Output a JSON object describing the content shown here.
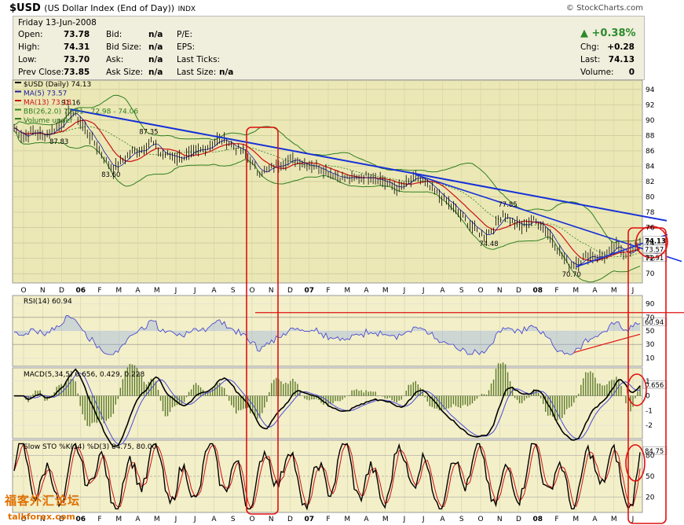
{
  "header": {
    "symbol": "$USD",
    "name": "(US Dollar Index (End of Day))",
    "exchange": "INDX",
    "watermark": "© StockCharts.com"
  },
  "info": {
    "date": "Friday  13-Jun-2008",
    "rows": [
      {
        "l1": "Open:",
        "v1": "73.78",
        "l2": "Bid:",
        "v2": "n/a",
        "l3": "P/E:",
        "v3": ""
      },
      {
        "l1": "High:",
        "v1": "74.31",
        "l2": "Bid Size:",
        "v2": "n/a",
        "l3": "EPS:",
        "v3": ""
      },
      {
        "l1": "Low:",
        "v1": "73.70",
        "l2": "Ask:",
        "v2": "n/a",
        "l3": "Last Ticks:",
        "v3": ""
      },
      {
        "l1": "Prev Close:",
        "v1": "73.85",
        "l2": "Ask Size:",
        "v2": "n/a",
        "l3": "Last Size:",
        "v3": "n/a"
      }
    ],
    "change_pct": "▲ +0.38%",
    "right": [
      {
        "l": "Chg:",
        "v": "+0.28"
      },
      {
        "l": "Last:",
        "v": "74.13"
      },
      {
        "l": "Volume:",
        "v": "0"
      }
    ]
  },
  "chart_data": [
    {
      "type": "line",
      "legend": [
        "$USD (Daily) 74.13",
        "MA(5) 73.57",
        "MA(13) 73.18",
        "BB(26,2.0) 71.91 - 72.98 - 74.06",
        "Volume undef"
      ],
      "x_ticks": [
        "O",
        "N",
        "D",
        "06",
        "F",
        "M",
        "A",
        "M",
        "J",
        "J",
        "A",
        "S",
        "O",
        "N",
        "D",
        "07",
        "F",
        "M",
        "A",
        "M",
        "J",
        "J",
        "A",
        "S",
        "O",
        "N",
        "D",
        "08",
        "F",
        "M",
        "A",
        "M",
        "J"
      ],
      "y_ticks": [
        70,
        72,
        74,
        76,
        78,
        80,
        82,
        84,
        86,
        88,
        90,
        92,
        94
      ],
      "ylim": [
        69,
        95
      ],
      "price_points": [
        [
          0,
          89.0
        ],
        [
          4,
          87.8
        ],
        [
          8,
          88.6
        ],
        [
          12,
          87.9
        ],
        [
          16,
          88.6
        ],
        [
          20,
          89.6
        ],
        [
          24,
          91.2
        ],
        [
          27,
          90.2
        ],
        [
          31,
          88.4
        ],
        [
          35,
          86.6
        ],
        [
          39,
          84.6
        ],
        [
          42,
          83.6
        ],
        [
          46,
          84.8
        ],
        [
          50,
          85.9
        ],
        [
          54,
          86.2
        ],
        [
          58,
          87.3
        ],
        [
          62,
          85.6
        ],
        [
          66,
          85.4
        ],
        [
          70,
          85.1
        ],
        [
          74,
          85.4
        ],
        [
          78,
          85.9
        ],
        [
          82,
          86.6
        ],
        [
          86,
          87.4
        ],
        [
          90,
          87.3
        ],
        [
          94,
          86.3
        ],
        [
          97,
          85.9
        ],
        [
          100,
          84.7
        ],
        [
          103,
          83.3
        ],
        [
          107,
          83.4
        ],
        [
          111,
          84.1
        ],
        [
          115,
          84.7
        ],
        [
          119,
          84.8
        ],
        [
          123,
          84.4
        ],
        [
          127,
          84.1
        ],
        [
          131,
          83.6
        ],
        [
          135,
          83.0
        ],
        [
          139,
          82.5
        ],
        [
          143,
          82.3
        ],
        [
          147,
          82.6
        ],
        [
          151,
          82.8
        ],
        [
          155,
          82.3
        ],
        [
          159,
          81.5
        ],
        [
          163,
          81.1
        ],
        [
          167,
          81.9
        ],
        [
          171,
          82.6
        ],
        [
          175,
          81.4
        ],
        [
          179,
          80.4
        ],
        [
          183,
          79.4
        ],
        [
          187,
          78.2
        ],
        [
          191,
          77.0
        ],
        [
          195,
          75.8
        ],
        [
          199,
          74.9
        ],
        [
          203,
          76.0
        ],
        [
          207,
          77.9
        ],
        [
          211,
          76.7
        ],
        [
          215,
          76.1
        ],
        [
          219,
          77.0
        ],
        [
          223,
          76.5
        ],
        [
          227,
          74.9
        ],
        [
          231,
          72.8
        ],
        [
          235,
          71.1
        ],
        [
          239,
          71.6
        ],
        [
          243,
          72.4
        ],
        [
          247,
          72.2
        ],
        [
          251,
          72.4
        ],
        [
          255,
          73.6
        ],
        [
          259,
          72.6
        ],
        [
          263,
          73.2
        ],
        [
          265,
          74.13
        ]
      ],
      "annotations": [
        "91.16",
        "87.83",
        "87.35",
        "83.60",
        "74.48",
        "77.85",
        "70.70"
      ],
      "last_labels": [
        "74.13",
        "73.57",
        "71.91"
      ]
    },
    {
      "type": "line",
      "name": "RSI(14) 60.94",
      "y_ticks": [
        10,
        30,
        50,
        70,
        90
      ],
      "ylim": [
        0,
        100
      ],
      "last_label": "60.94"
    },
    {
      "type": "line",
      "name": "MACD(5,34,5) 0.656, 0.429, 0.228",
      "y_ticks": [
        -2,
        -1,
        0,
        1
      ],
      "ylim": [
        -2.8,
        1.8
      ],
      "last_label": "0.656"
    },
    {
      "type": "line",
      "name": "Slow STO %K(14) %D(3) 84.75, 80.00",
      "y_ticks": [
        20,
        50,
        80
      ],
      "ylim": [
        0,
        100
      ],
      "last_label": "84.75"
    }
  ],
  "stamp": {
    "cn": "福客外汇论坛",
    "en": "talkforex.com"
  }
}
